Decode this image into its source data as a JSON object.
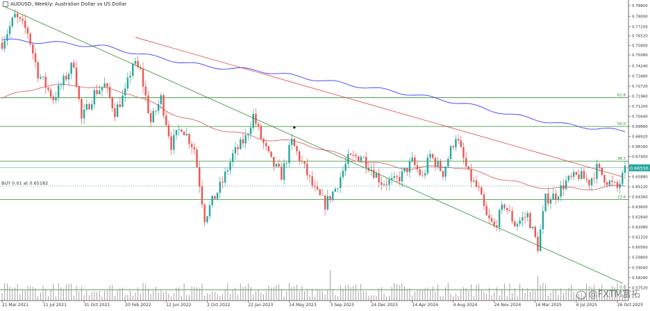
{
  "header": {
    "title": "AUDUSD, Weekly:  Australian Dollar vs US Dollar"
  },
  "order_line": {
    "label": "BUY 0.01 at 0.65182",
    "price": 0.65182
  },
  "current_price": {
    "label": "0.66556",
    "value": 0.66556
  },
  "watermark": {
    "text": "@FXTM富拓"
  },
  "colors": {
    "bull": "#26a69a",
    "bear": "#ef5350",
    "ma_red": "#e06060",
    "ma_blue": "#3a3aff",
    "fib": "#2e8b2e",
    "trend_green": "#2e8b2e",
    "trend_red": "#e04040",
    "price_tag": "#26a69a"
  },
  "chart_data": {
    "type": "candlestick",
    "title": "AUDUSD, Weekly:  Australian Dollar vs US Dollar",
    "ylim": [
      0.5722,
      0.788
    ],
    "price_ticks": [
      "0.78800",
      "0.78000",
      "0.77200",
      "0.76520",
      "0.75800",
      "0.75080",
      "0.74240",
      "0.73480",
      "0.72720",
      "0.71960",
      "0.71200",
      "0.70440",
      "0.69680",
      "0.68920",
      "0.68160",
      "0.67400",
      "0.66640",
      "0.65880",
      "0.65120",
      "0.64360",
      "0.63600",
      "0.62840",
      "0.62080",
      "0.61320",
      "0.60560",
      "0.59800",
      "0.59040",
      "0.58280",
      "0.57520"
    ],
    "date_ticks": [
      {
        "label": "21 Mar 2021",
        "index": 0
      },
      {
        "label": "11 Jul 2021",
        "index": 16
      },
      {
        "label": "31 Oct 2021",
        "index": 32
      },
      {
        "label": "20 Feb 2022",
        "index": 48
      },
      {
        "label": "12 Jun 2022",
        "index": 64
      },
      {
        "label": "2 Oct 2022",
        "index": 80
      },
      {
        "label": "22 Jan 2023",
        "index": 96
      },
      {
        "label": "14 May 2023",
        "index": 112
      },
      {
        "label": "3 Sep 2023",
        "index": 128
      },
      {
        "label": "24 Dec 2023",
        "index": 144
      },
      {
        "label": "14 Apr 2024",
        "index": 160
      },
      {
        "label": "4 Aug 2024",
        "index": 176
      },
      {
        "label": "24 Nov 2024",
        "index": 192
      },
      {
        "label": "16 Mar 2025",
        "index": 208
      },
      {
        "label": "6 Jul 2025",
        "index": 224
      },
      {
        "label": "26 Oct 2025",
        "index": 240
      }
    ],
    "fib_levels": [
      {
        "label": "61.8",
        "value": 0.7185
      },
      {
        "label": "50.0",
        "value": 0.6968
      },
      {
        "label": "38.2",
        "value": 0.6706
      },
      {
        "label": "23.6",
        "value": 0.6416
      },
      {
        "label": "0.0",
        "value": 0.5735
      }
    ],
    "trendlines": [
      {
        "name": "green",
        "from": {
          "index": 0,
          "value": 0.788
        },
        "to": {
          "index": 242,
          "value": 0.5785
        }
      },
      {
        "name": "red",
        "from": {
          "index": 52,
          "value": 0.764
        },
        "to": {
          "index": 242,
          "value": 0.6588
        }
      }
    ],
    "marker": {
      "index": 114,
      "value": 0.696
    },
    "anchors": [
      [
        0,
        0.76
      ],
      [
        5,
        0.78
      ],
      [
        10,
        0.768
      ],
      [
        14,
        0.737
      ],
      [
        20,
        0.718
      ],
      [
        24,
        0.731
      ],
      [
        28,
        0.745
      ],
      [
        31,
        0.702
      ],
      [
        36,
        0.722
      ],
      [
        40,
        0.728
      ],
      [
        44,
        0.708
      ],
      [
        48,
        0.722
      ],
      [
        51,
        0.745
      ],
      [
        54,
        0.738
      ],
      [
        58,
        0.7
      ],
      [
        62,
        0.718
      ],
      [
        66,
        0.683
      ],
      [
        70,
        0.697
      ],
      [
        75,
        0.68
      ],
      [
        79,
        0.628
      ],
      [
        82,
        0.64
      ],
      [
        86,
        0.655
      ],
      [
        90,
        0.675
      ],
      [
        95,
        0.688
      ],
      [
        98,
        0.705
      ],
      [
        101,
        0.688
      ],
      [
        105,
        0.67
      ],
      [
        109,
        0.66
      ],
      [
        113,
        0.685
      ],
      [
        118,
        0.665
      ],
      [
        122,
        0.648
      ],
      [
        126,
        0.638
      ],
      [
        130,
        0.65
      ],
      [
        135,
        0.672
      ],
      [
        140,
        0.675
      ],
      [
        144,
        0.665
      ],
      [
        148,
        0.655
      ],
      [
        153,
        0.655
      ],
      [
        156,
        0.66
      ],
      [
        160,
        0.67
      ],
      [
        164,
        0.658
      ],
      [
        167,
        0.675
      ],
      [
        172,
        0.662
      ],
      [
        177,
        0.69
      ],
      [
        182,
        0.66
      ],
      [
        186,
        0.648
      ],
      [
        189,
        0.628
      ],
      [
        192,
        0.621
      ],
      [
        196,
        0.638
      ],
      [
        200,
        0.623
      ],
      [
        205,
        0.63
      ],
      [
        209,
        0.606
      ],
      [
        212,
        0.642
      ],
      [
        216,
        0.645
      ],
      [
        220,
        0.655
      ],
      [
        225,
        0.66
      ],
      [
        229,
        0.655
      ],
      [
        232,
        0.665
      ],
      [
        236,
        0.656
      ],
      [
        240,
        0.65
      ],
      [
        243,
        0.663
      ]
    ],
    "ma_red": [
      [
        0,
        0.718
      ],
      [
        15,
        0.727
      ],
      [
        30,
        0.728
      ],
      [
        50,
        0.722
      ],
      [
        65,
        0.708
      ],
      [
        80,
        0.697
      ],
      [
        100,
        0.688
      ],
      [
        118,
        0.684
      ],
      [
        135,
        0.673
      ],
      [
        148,
        0.668
      ],
      [
        160,
        0.665
      ],
      [
        175,
        0.667
      ],
      [
        190,
        0.66
      ],
      [
        205,
        0.652
      ],
      [
        218,
        0.65
      ],
      [
        232,
        0.65
      ],
      [
        243,
        0.652
      ]
    ],
    "ma_blue": [
      [
        0,
        0.762
      ],
      [
        20,
        0.76
      ],
      [
        40,
        0.757
      ],
      [
        60,
        0.749
      ],
      [
        80,
        0.742
      ],
      [
        100,
        0.739
      ],
      [
        120,
        0.733
      ],
      [
        140,
        0.727
      ],
      [
        160,
        0.721
      ],
      [
        180,
        0.714
      ],
      [
        200,
        0.705
      ],
      [
        220,
        0.698
      ],
      [
        243,
        0.693
      ]
    ]
  }
}
